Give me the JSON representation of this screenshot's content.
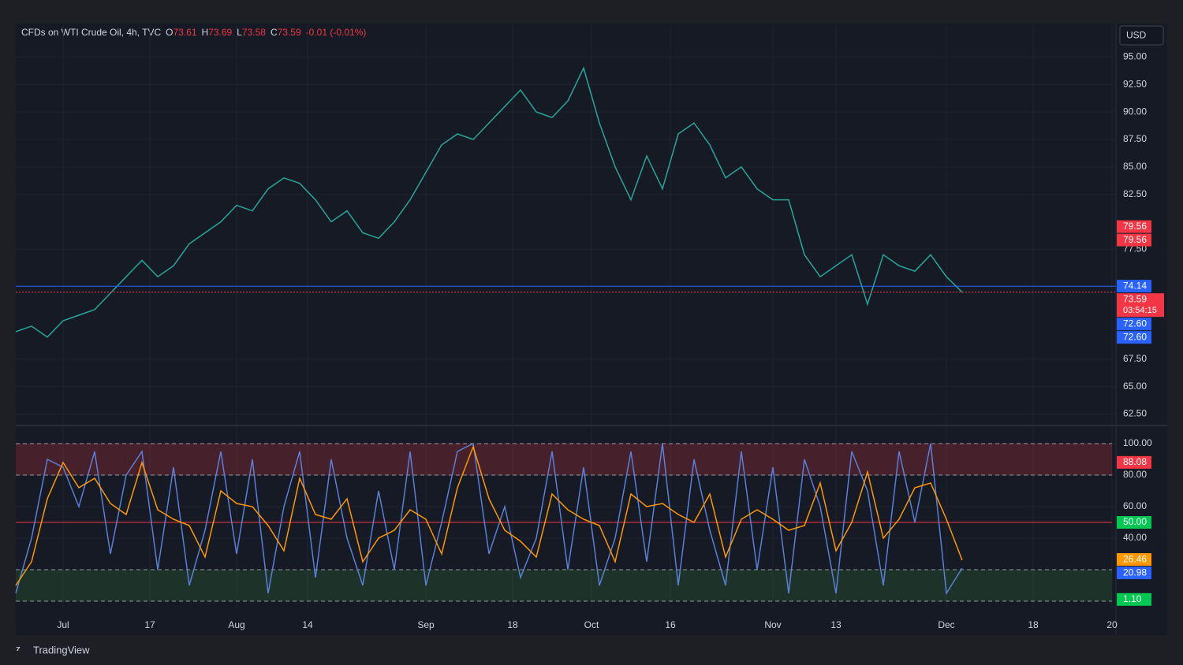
{
  "header": {
    "symbol": "CFDs on WTI Crude Oil, 4h, TVC",
    "fields": [
      {
        "key": "O",
        "value": "73.61"
      },
      {
        "key": "H",
        "value": "73.69"
      },
      {
        "key": "L",
        "value": "73.58"
      },
      {
        "key": "C",
        "value": "73.59"
      }
    ],
    "change": "-0.01 (-0.01%)"
  },
  "currency": "USD",
  "brand": "TradingView",
  "chart_data": [
    {
      "type": "line",
      "x": [
        0,
        2,
        4,
        6,
        8,
        10,
        12,
        14,
        16,
        18,
        20,
        22,
        24,
        26,
        28,
        30,
        32,
        34,
        36,
        38,
        40,
        42,
        44,
        46,
        48,
        50,
        52,
        54,
        56,
        58,
        60,
        62,
        64,
        66,
        68,
        70,
        72,
        74,
        76,
        78,
        80,
        82,
        84,
        86,
        88,
        90,
        92,
        94,
        96,
        98,
        100,
        102,
        104,
        106,
        108,
        110,
        112,
        114,
        116,
        118,
        120
      ],
      "series": [
        {
          "color": "#26a69a",
          "values": [
            70,
            70.5,
            69.5,
            71,
            71.5,
            72,
            73.5,
            75,
            76.5,
            75,
            76,
            78,
            79,
            80,
            81.5,
            81,
            83,
            84,
            83.5,
            82,
            80,
            81,
            79,
            78.5,
            80,
            82,
            84.5,
            87,
            88,
            87.5,
            89,
            90.5,
            92,
            90,
            89.5,
            91,
            94,
            89,
            85,
            82,
            86,
            83,
            88,
            89,
            87,
            84,
            85,
            83,
            82,
            82,
            77,
            75,
            76,
            77,
            72.5,
            77,
            76,
            75.5,
            77,
            75,
            73.59
          ]
        }
      ],
      "xlim": [
        0,
        139
      ],
      "ylim": [
        61.6,
        97.9
      ],
      "yticks": [
        {
          "value": 95,
          "label": "95.00"
        },
        {
          "value": 92.5,
          "label": "92.50"
        },
        {
          "value": 90,
          "label": "90.00"
        },
        {
          "value": 87.5,
          "label": "87.50"
        },
        {
          "value": 85,
          "label": "85.00"
        },
        {
          "value": 82.5,
          "label": "82.50"
        },
        {
          "value": 77.5,
          "label": "77.50"
        },
        {
          "value": 67.5,
          "label": "67.50"
        },
        {
          "value": 65,
          "label": "65.00"
        },
        {
          "value": 62.5,
          "label": "62.50"
        }
      ],
      "price_labels": [
        {
          "value": 79.56,
          "label": "79.56",
          "color": "#f23645"
        },
        {
          "value": 79.56,
          "label": "79.56",
          "color": "#f23645"
        },
        {
          "value": 74.14,
          "label": "74.14",
          "color": "#2962ff",
          "line": "solid"
        },
        {
          "value": 73.59,
          "label": "73.59",
          "sub": "03:54:15",
          "color": "#f23645",
          "line": "dotted"
        },
        {
          "value": 72.6,
          "label": "72.60",
          "color": "#2962ff"
        },
        {
          "value": 72.6,
          "label": "72.60",
          "color": "#2962ff"
        }
      ]
    },
    {
      "type": "line",
      "x": [
        0,
        2,
        4,
        6,
        8,
        10,
        12,
        14,
        16,
        18,
        20,
        22,
        24,
        26,
        28,
        30,
        32,
        34,
        36,
        38,
        40,
        42,
        44,
        46,
        48,
        50,
        52,
        54,
        56,
        58,
        60,
        62,
        64,
        66,
        68,
        70,
        72,
        74,
        76,
        78,
        80,
        82,
        84,
        86,
        88,
        90,
        92,
        94,
        96,
        98,
        100,
        102,
        104,
        106,
        108,
        110,
        112,
        114,
        116,
        118,
        120
      ],
      "series": [
        {
          "color": "#5b7fd6",
          "values": [
            5,
            40,
            90,
            85,
            60,
            95,
            30,
            80,
            95,
            20,
            85,
            10,
            45,
            95,
            30,
            90,
            5,
            60,
            95,
            15,
            90,
            40,
            10,
            70,
            20,
            95,
            10,
            50,
            95,
            100,
            30,
            60,
            15,
            40,
            95,
            20,
            85,
            10,
            40,
            95,
            25,
            100,
            10,
            90,
            45,
            10,
            95,
            20,
            85,
            5,
            90,
            60,
            5,
            95,
            70,
            10,
            95,
            50,
            100,
            5,
            21
          ]
        },
        {
          "color": "#ff9800",
          "values": [
            10,
            25,
            65,
            88,
            72,
            78,
            62,
            55,
            88,
            58,
            52,
            48,
            28,
            70,
            62,
            60,
            48,
            32,
            78,
            55,
            52,
            65,
            25,
            40,
            45,
            58,
            52,
            30,
            72,
            98,
            65,
            45,
            38,
            28,
            68,
            58,
            52,
            48,
            25,
            68,
            60,
            62,
            55,
            50,
            68,
            28,
            52,
            58,
            52,
            45,
            48,
            75,
            32,
            50,
            82,
            40,
            52,
            72,
            75,
            52,
            26
          ]
        }
      ],
      "xlim": [
        0,
        139
      ],
      "xticks": [
        {
          "value": 6,
          "label": "Jul"
        },
        17,
        {
          "value": 28,
          "label": "Aug"
        },
        {
          "value": 37,
          "label": "14"
        },
        {
          "value": 52,
          "label": "Sep"
        },
        {
          "value": 63,
          "label": "18"
        },
        {
          "value": 73,
          "label": "Oct"
        },
        {
          "value": 83,
          "label": "16"
        },
        {
          "value": 96,
          "label": "Nov"
        },
        {
          "value": 104,
          "label": "13"
        },
        {
          "value": 118,
          "label": "Dec"
        },
        {
          "value": 129,
          "label": "18"
        },
        {
          "value": 139,
          "label": "20"
        }
      ],
      "ylim": [
        -4.5,
        110.5
      ],
      "yticks": [
        {
          "value": 100,
          "label": "100.00"
        },
        {
          "value": 80,
          "label": "80.00"
        },
        {
          "value": 60,
          "label": "60.00"
        },
        {
          "value": 40,
          "label": "40.00"
        }
      ],
      "bands": [
        {
          "range": [
            80,
            100
          ],
          "color": "rgba(242,54,69,0.22)"
        },
        {
          "range": [
            0,
            20
          ],
          "color": "rgba(56,142,60,0.22)"
        }
      ],
      "hlines": [
        {
          "value": 100,
          "color": "#9598a1",
          "style": "dashed"
        },
        {
          "value": 80,
          "color": "#9598a1",
          "style": "dashed"
        },
        {
          "value": 50,
          "color": "#f23645",
          "style": "solid"
        },
        {
          "value": 20,
          "color": "#9598a1",
          "style": "dashed"
        },
        {
          "value": 0,
          "color": "#9598a1",
          "style": "dashed"
        }
      ],
      "price_labels": [
        {
          "value": 88.08,
          "label": "88.08",
          "color": "#f23645"
        },
        {
          "value": 50,
          "label": "50.00",
          "color": "#00c853"
        },
        {
          "value": 26.46,
          "label": "26.46",
          "color": "#ff9800"
        },
        {
          "value": 20.98,
          "label": "20.98",
          "color": "#2962ff"
        },
        {
          "value": 1.1,
          "label": "1.10",
          "color": "#00c853"
        }
      ]
    }
  ]
}
